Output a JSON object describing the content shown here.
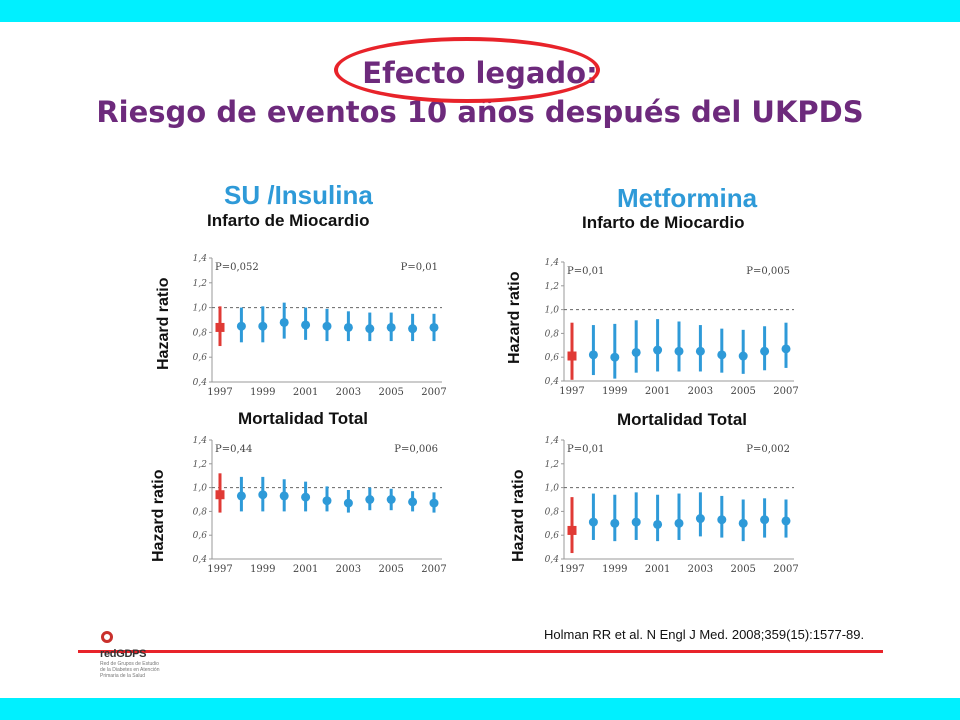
{
  "slide": {
    "title_line1": "Efecto legado:",
    "title_line2": "Riesgo de eventos 10 años después del UKPDS",
    "citation": "Holman RR et al. N Engl J Med. 2008;359(15):1577-89.",
    "logo_text": "redGDPS",
    "logo_fine": "Red de Grupos de Estudio de la Diabetes en Atención Primaria de la Salud"
  },
  "groups": [
    {
      "name": "SU /Insulina"
    },
    {
      "name": "Metformina"
    }
  ],
  "colors": {
    "title": "#6d2a7c",
    "group": "#2e9ad8",
    "baseline_point": "#e03a35",
    "point": "#2e9ad8",
    "band": "#00f0ff",
    "accent": "#e8232a"
  },
  "chart_data": [
    {
      "type": "scatter",
      "panel": "SU /Insulina",
      "title": "Infarto de Miocardio",
      "ylabel": "Hazard ratio",
      "ylim": [
        0.4,
        1.4
      ],
      "yticks": [
        "1,4",
        "1,2",
        "1,0",
        "0,8",
        "0,6",
        "0,4"
      ],
      "xticks": [
        "1997",
        "1999",
        "2001",
        "2003",
        "2005",
        "2007"
      ],
      "p_start": "P=0,052",
      "p_end": "P=0,01",
      "points": [
        {
          "x": 1997,
          "hr": 0.84,
          "lo": 0.69,
          "hi": 1.01
        },
        {
          "x": 1998,
          "hr": 0.85,
          "lo": 0.72,
          "hi": 1.0
        },
        {
          "x": 1999,
          "hr": 0.85,
          "lo": 0.72,
          "hi": 1.01
        },
        {
          "x": 2000,
          "hr": 0.88,
          "lo": 0.75,
          "hi": 1.04
        },
        {
          "x": 2001,
          "hr": 0.86,
          "lo": 0.74,
          "hi": 1.0
        },
        {
          "x": 2002,
          "hr": 0.85,
          "lo": 0.73,
          "hi": 0.99
        },
        {
          "x": 2003,
          "hr": 0.84,
          "lo": 0.73,
          "hi": 0.97
        },
        {
          "x": 2004,
          "hr": 0.83,
          "lo": 0.73,
          "hi": 0.96
        },
        {
          "x": 2005,
          "hr": 0.84,
          "lo": 0.73,
          "hi": 0.96
        },
        {
          "x": 2006,
          "hr": 0.83,
          "lo": 0.73,
          "hi": 0.95
        },
        {
          "x": 2007,
          "hr": 0.84,
          "lo": 0.73,
          "hi": 0.95
        }
      ]
    },
    {
      "type": "scatter",
      "panel": "SU /Insulina",
      "title": "Mortalidad Total",
      "ylabel": "Hazard ratio",
      "ylim": [
        0.4,
        1.4
      ],
      "yticks": [
        "1,4",
        "1,2",
        "1,0",
        "0,8",
        "0,6",
        "0,4"
      ],
      "xticks": [
        "1997",
        "1999",
        "2001",
        "2003",
        "2005",
        "2007"
      ],
      "p_start": "P=0,44",
      "p_end": "P=0,006",
      "points": [
        {
          "x": 1997,
          "hr": 0.94,
          "lo": 0.79,
          "hi": 1.12
        },
        {
          "x": 1998,
          "hr": 0.93,
          "lo": 0.8,
          "hi": 1.09
        },
        {
          "x": 1999,
          "hr": 0.94,
          "lo": 0.8,
          "hi": 1.09
        },
        {
          "x": 2000,
          "hr": 0.93,
          "lo": 0.8,
          "hi": 1.07
        },
        {
          "x": 2001,
          "hr": 0.92,
          "lo": 0.8,
          "hi": 1.05
        },
        {
          "x": 2002,
          "hr": 0.89,
          "lo": 0.8,
          "hi": 1.01
        },
        {
          "x": 2003,
          "hr": 0.87,
          "lo": 0.79,
          "hi": 0.98
        },
        {
          "x": 2004,
          "hr": 0.9,
          "lo": 0.81,
          "hi": 1.0
        },
        {
          "x": 2005,
          "hr": 0.9,
          "lo": 0.81,
          "hi": 0.99
        },
        {
          "x": 2006,
          "hr": 0.88,
          "lo": 0.8,
          "hi": 0.97
        },
        {
          "x": 2007,
          "hr": 0.87,
          "lo": 0.79,
          "hi": 0.96
        }
      ]
    },
    {
      "type": "scatter",
      "panel": "Metformina",
      "title": "Infarto de Miocardio",
      "ylabel": "Hazard ratio",
      "ylim": [
        0.4,
        1.4
      ],
      "yticks": [
        "1,4",
        "1,2",
        "1,0",
        "0,8",
        "0,6",
        "0,4"
      ],
      "xticks": [
        "1997",
        "1999",
        "2001",
        "2003",
        "2005",
        "2007"
      ],
      "p_start": "P=0,01",
      "p_end": "P=0,005",
      "points": [
        {
          "x": 1997,
          "hr": 0.61,
          "lo": 0.41,
          "hi": 0.89
        },
        {
          "x": 1998,
          "hr": 0.62,
          "lo": 0.45,
          "hi": 0.87
        },
        {
          "x": 1999,
          "hr": 0.6,
          "lo": 0.42,
          "hi": 0.88
        },
        {
          "x": 2000,
          "hr": 0.64,
          "lo": 0.47,
          "hi": 0.91
        },
        {
          "x": 2001,
          "hr": 0.66,
          "lo": 0.48,
          "hi": 0.92
        },
        {
          "x": 2002,
          "hr": 0.65,
          "lo": 0.48,
          "hi": 0.9
        },
        {
          "x": 2003,
          "hr": 0.65,
          "lo": 0.48,
          "hi": 0.87
        },
        {
          "x": 2004,
          "hr": 0.62,
          "lo": 0.47,
          "hi": 0.84
        },
        {
          "x": 2005,
          "hr": 0.61,
          "lo": 0.46,
          "hi": 0.83
        },
        {
          "x": 2006,
          "hr": 0.65,
          "lo": 0.49,
          "hi": 0.86
        },
        {
          "x": 2007,
          "hr": 0.67,
          "lo": 0.51,
          "hi": 0.89
        }
      ]
    },
    {
      "type": "scatter",
      "panel": "Metformina",
      "title": "Mortalidad Total",
      "ylabel": "Hazard ratio",
      "ylim": [
        0.4,
        1.4
      ],
      "yticks": [
        "1,4",
        "1,2",
        "1,0",
        "0,8",
        "0,6",
        "0,4"
      ],
      "xticks": [
        "1997",
        "1999",
        "2001",
        "2003",
        "2005",
        "2007"
      ],
      "p_start": "P=0,01",
      "p_end": "P=0,002",
      "points": [
        {
          "x": 1997,
          "hr": 0.64,
          "lo": 0.45,
          "hi": 0.92
        },
        {
          "x": 1998,
          "hr": 0.71,
          "lo": 0.56,
          "hi": 0.95
        },
        {
          "x": 1999,
          "hr": 0.7,
          "lo": 0.55,
          "hi": 0.94
        },
        {
          "x": 2000,
          "hr": 0.71,
          "lo": 0.56,
          "hi": 0.96
        },
        {
          "x": 2001,
          "hr": 0.69,
          "lo": 0.55,
          "hi": 0.94
        },
        {
          "x": 2002,
          "hr": 0.7,
          "lo": 0.56,
          "hi": 0.95
        },
        {
          "x": 2003,
          "hr": 0.74,
          "lo": 0.59,
          "hi": 0.96
        },
        {
          "x": 2004,
          "hr": 0.73,
          "lo": 0.58,
          "hi": 0.93
        },
        {
          "x": 2005,
          "hr": 0.7,
          "lo": 0.55,
          "hi": 0.9
        },
        {
          "x": 2006,
          "hr": 0.73,
          "lo": 0.58,
          "hi": 0.91
        },
        {
          "x": 2007,
          "hr": 0.72,
          "lo": 0.58,
          "hi": 0.9
        }
      ]
    }
  ]
}
